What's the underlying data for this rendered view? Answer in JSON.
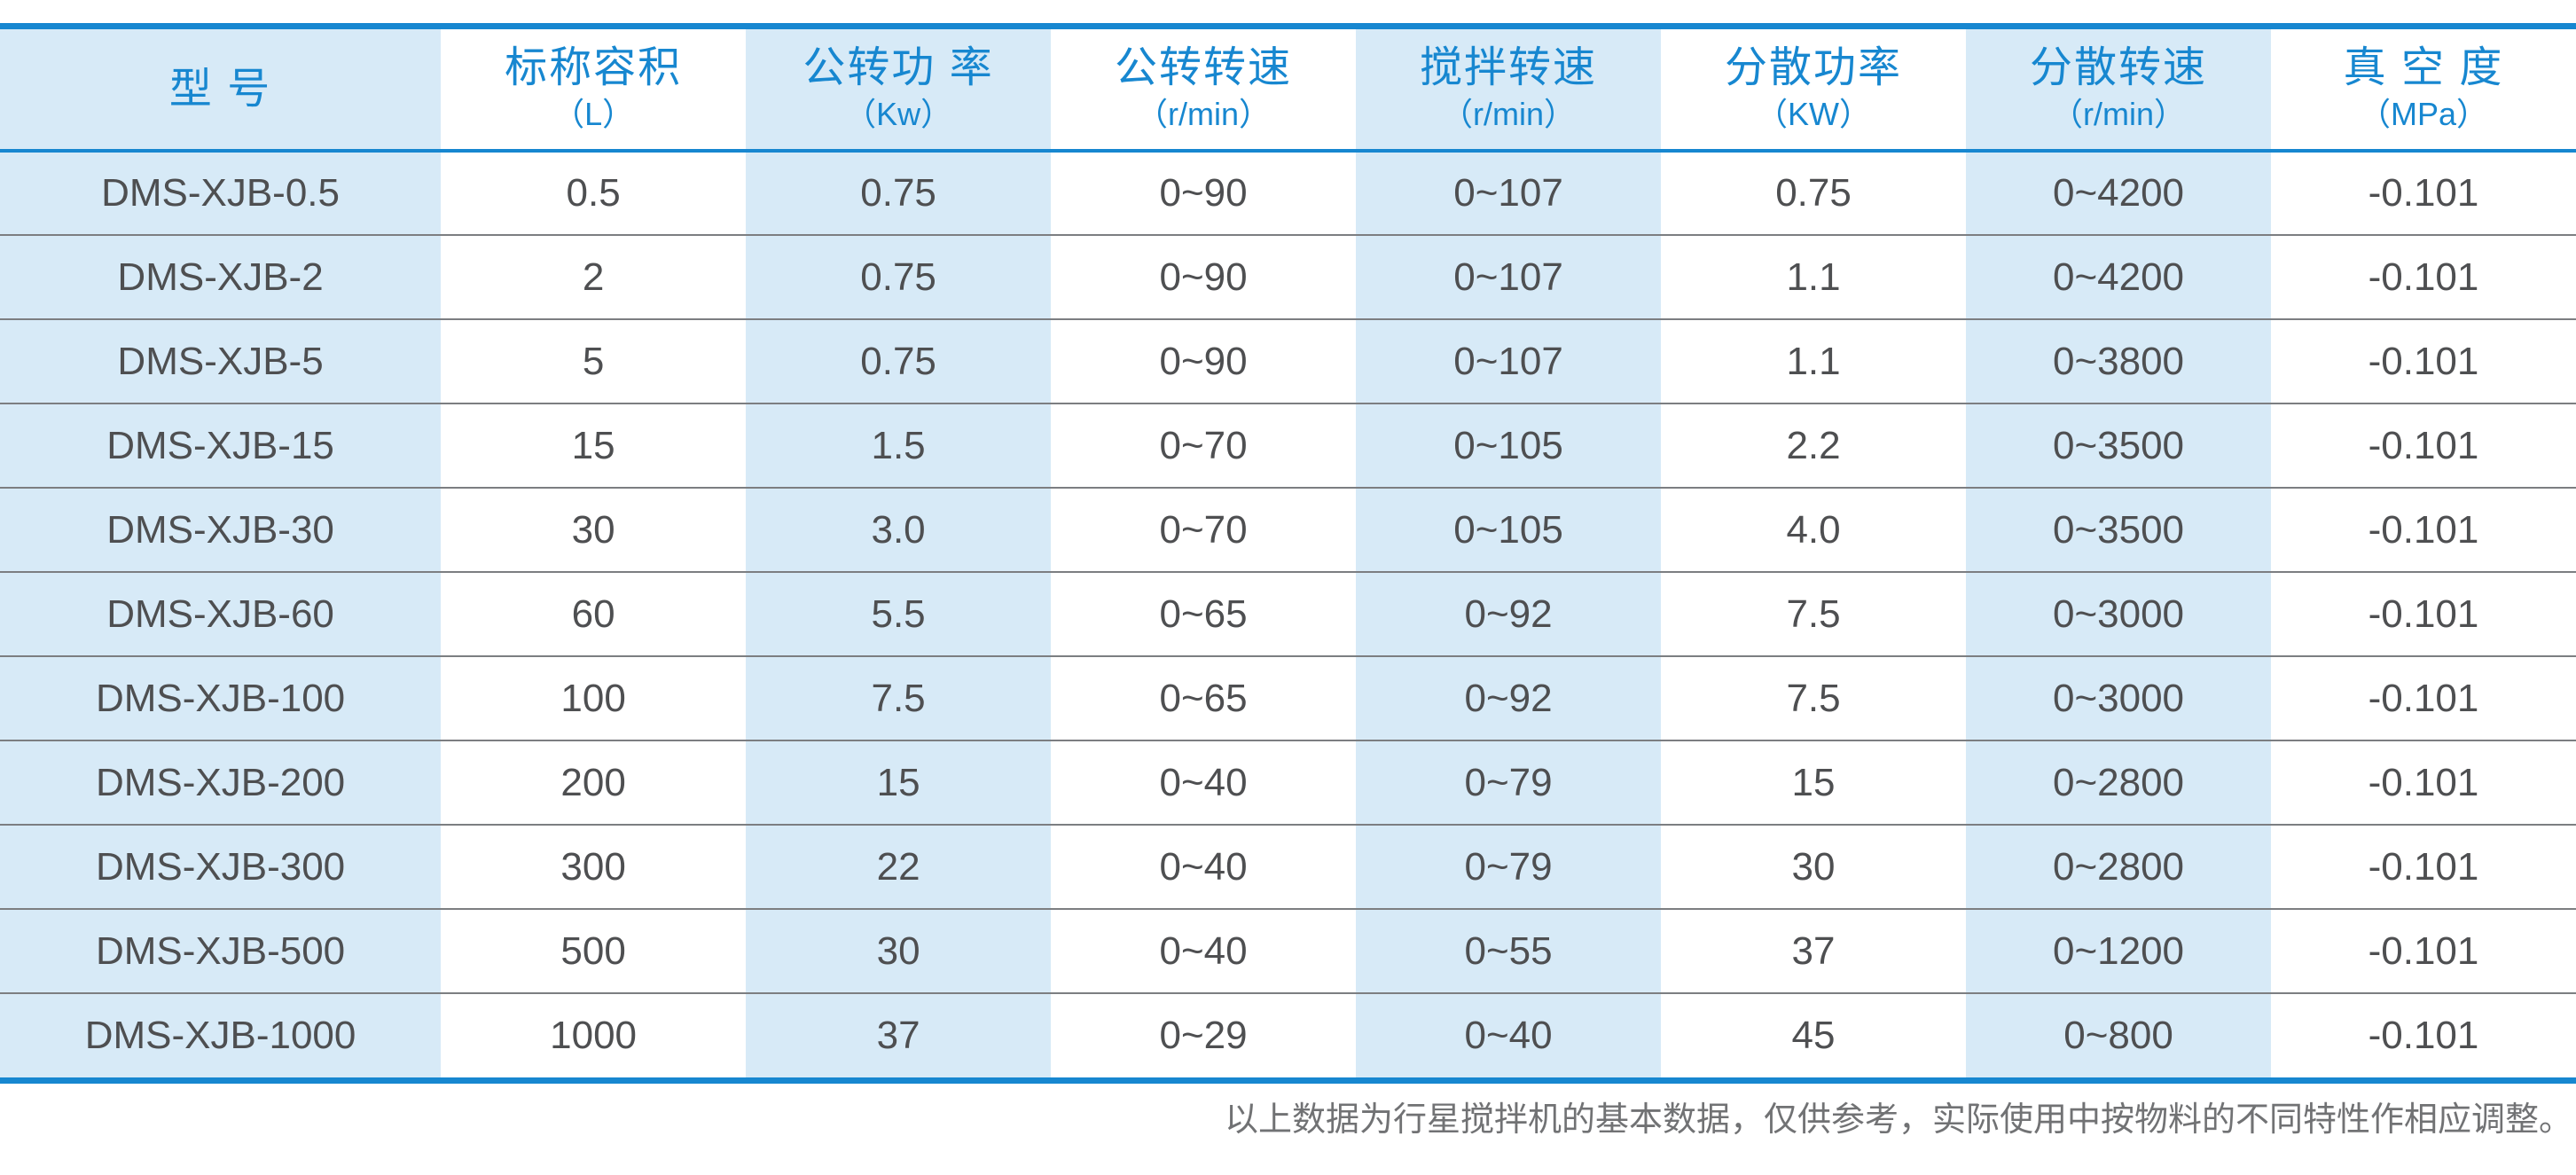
{
  "table": {
    "columns": [
      {
        "label": "型  号",
        "unit": ""
      },
      {
        "label": "标称容积",
        "unit": "（L）"
      },
      {
        "label": "公转功 率",
        "unit": "（Kw）"
      },
      {
        "label": "公转转速",
        "unit": "（r/min）"
      },
      {
        "label": "搅拌转速",
        "unit": "（r/min）"
      },
      {
        "label": "分散功率",
        "unit": "（KW）"
      },
      {
        "label": "分散转速",
        "unit": "（r/min）"
      },
      {
        "label": "真 空 度",
        "unit": "（MPa）"
      }
    ],
    "rows": [
      [
        "DMS-XJB-0.5",
        "0.5",
        "0.75",
        "0~90",
        "0~107",
        "0.75",
        "0~4200",
        "-0.101"
      ],
      [
        "DMS-XJB-2",
        "2",
        "0.75",
        "0~90",
        "0~107",
        "1.1",
        "0~4200",
        "-0.101"
      ],
      [
        "DMS-XJB-5",
        "5",
        "0.75",
        "0~90",
        "0~107",
        "1.1",
        "0~3800",
        "-0.101"
      ],
      [
        "DMS-XJB-15",
        "15",
        "1.5",
        "0~70",
        "0~105",
        "2.2",
        "0~3500",
        "-0.101"
      ],
      [
        "DMS-XJB-30",
        "30",
        "3.0",
        "0~70",
        "0~105",
        "4.0",
        "0~3500",
        "-0.101"
      ],
      [
        "DMS-XJB-60",
        "60",
        "5.5",
        "0~65",
        "0~92",
        "7.5",
        "0~3000",
        "-0.101"
      ],
      [
        "DMS-XJB-100",
        "100",
        "7.5",
        "0~65",
        "0~92",
        "7.5",
        "0~3000",
        "-0.101"
      ],
      [
        "DMS-XJB-200",
        "200",
        "15",
        "0~40",
        "0~79",
        "15",
        "0~2800",
        "-0.101"
      ],
      [
        "DMS-XJB-300",
        "300",
        "22",
        "0~40",
        "0~79",
        "30",
        "0~2800",
        "-0.101"
      ],
      [
        "DMS-XJB-500",
        "500",
        "30",
        "0~40",
        "0~55",
        "37",
        "0~1200",
        "-0.101"
      ],
      [
        "DMS-XJB-1000",
        "1000",
        "37",
        "0~29",
        "0~40",
        "45",
        "0~800",
        "-0.101"
      ]
    ]
  },
  "footer": {
    "note": "以上数据为行星搅拌机的基本数据，仅供参考，实际使用中按物料的不同特性作相应调整。"
  },
  "colors": {
    "accent_blue": "#1787d0",
    "stripe_light_blue": "#d7eaf7",
    "text_dark": "#4e4f51",
    "row_divider_gray": "#7c7e81",
    "note_gray": "#717274"
  }
}
